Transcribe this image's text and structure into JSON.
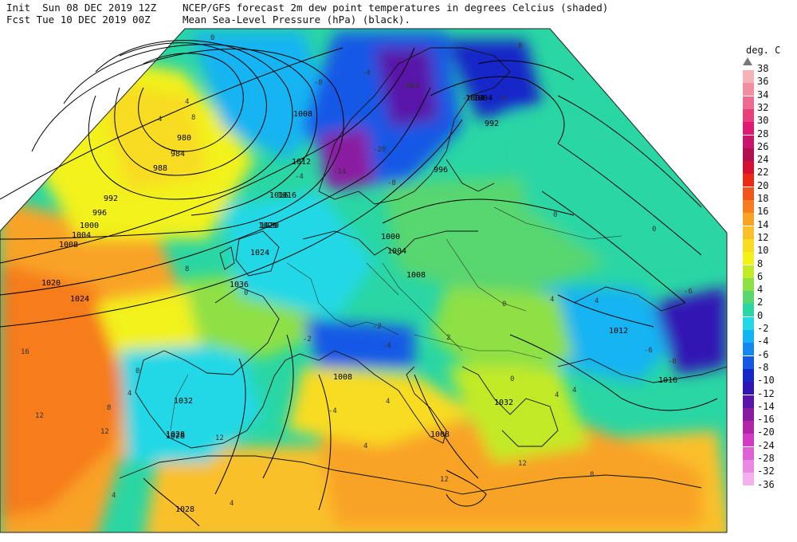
{
  "header": {
    "init_line": "Init  Sun 08 DEC 2019 12Z",
    "fcst_line": "Fcst Tue 10 DEC 2019 00Z",
    "title_line1": "NCEP/GFS forecast 2m dew point temperatures in degrees Celcius (shaded)",
    "title_line2": "Mean Sea-Level Pressure (hPa) (black)."
  },
  "legend": {
    "title": "deg. C",
    "levels": [
      {
        "label": "38",
        "color": "#ffffff"
      },
      {
        "label": "36",
        "color": "#f5b3b6"
      },
      {
        "label": "34",
        "color": "#f08fa0"
      },
      {
        "label": "32",
        "color": "#ec6b8f"
      },
      {
        "label": "30",
        "color": "#e6417a"
      },
      {
        "label": "28",
        "color": "#de1a72"
      },
      {
        "label": "26",
        "color": "#c8146a"
      },
      {
        "label": "24",
        "color": "#b0104e"
      },
      {
        "label": "22",
        "color": "#d41030"
      },
      {
        "label": "20",
        "color": "#e82a16"
      },
      {
        "label": "18",
        "color": "#f2551a"
      },
      {
        "label": "16",
        "color": "#f67c1d"
      },
      {
        "label": "14",
        "color": "#f9a325"
      },
      {
        "label": "12",
        "color": "#fac02c"
      },
      {
        "label": "10",
        "color": "#f8dc22"
      },
      {
        "label": "8",
        "color": "#f2f21a"
      },
      {
        "label": "6",
        "color": "#c2ea26"
      },
      {
        "label": "4",
        "color": "#8ee044"
      },
      {
        "label": "2",
        "color": "#58d670"
      },
      {
        "label": "0",
        "color": "#2ad6a4"
      },
      {
        "label": "-2",
        "color": "#22d8e6"
      },
      {
        "label": "-4",
        "color": "#14b4f2"
      },
      {
        "label": "-6",
        "color": "#1488ee"
      },
      {
        "label": "-8",
        "color": "#1458e6"
      },
      {
        "label": "-10",
        "color": "#1428c8"
      },
      {
        "label": "-12",
        "color": "#3014b4"
      },
      {
        "label": "-14",
        "color": "#5a14a8"
      },
      {
        "label": "-16",
        "color": "#8a1aa0"
      },
      {
        "label": "-20",
        "color": "#b224a8"
      },
      {
        "label": "-24",
        "color": "#d23cc2"
      },
      {
        "label": "-28",
        "color": "#e060d6"
      },
      {
        "label": "-32",
        "color": "#ea88e4"
      },
      {
        "label": "-36",
        "color": "#f4b0ee"
      }
    ]
  },
  "pressure_labels": [
    "980",
    "984",
    "988",
    "992",
    "996",
    "1000",
    "1004",
    "1008",
    "1012",
    "1016",
    "1020",
    "1024",
    "1028",
    "1032",
    "1036",
    "992",
    "996",
    "1000",
    "1004",
    "1008",
    "1012",
    "1016",
    "1020",
    "1024",
    "1008",
    "1028",
    "1032",
    "1008",
    "1028",
    "1016",
    "1020",
    "1008",
    "1004",
    "1004"
  ],
  "dewpoint_labels": [
    "0",
    "4",
    "8",
    "4",
    "16",
    "12",
    "12",
    "8",
    "4",
    "0",
    "4",
    "8",
    "12",
    "4",
    "0",
    "-4",
    "-8",
    "-16",
    "-14",
    "-4",
    "-8",
    "-4",
    "0",
    "0",
    "4",
    "0",
    "4",
    "8",
    "12",
    "12",
    "4",
    "-2",
    "-2",
    "-6",
    "-8",
    "-6",
    "0",
    "4",
    "4",
    "4",
    "-4",
    "-4",
    "-20",
    "-12",
    "-16",
    "0",
    "2"
  ]
}
